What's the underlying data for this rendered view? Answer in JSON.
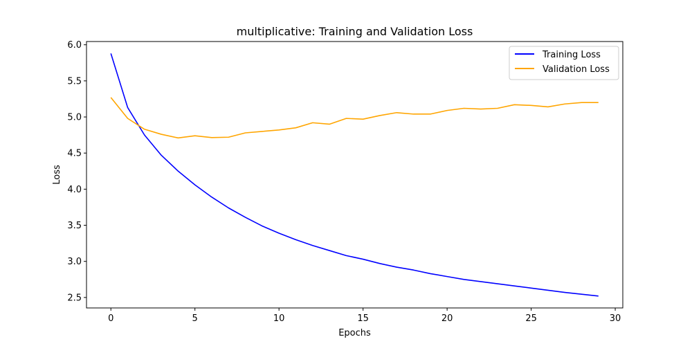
{
  "chart_data": {
    "type": "line",
    "title": "multiplicative: Training and Validation Loss",
    "xlabel": "Epochs",
    "ylabel": "Loss",
    "xlim": [
      -1.45,
      30.45
    ],
    "ylim": [
      2.355,
      6.045
    ],
    "xticks": [
      0,
      5,
      10,
      15,
      20,
      25,
      30
    ],
    "yticks": [
      2.5,
      3.0,
      3.5,
      4.0,
      4.5,
      5.0,
      5.5,
      6.0
    ],
    "xtick_labels": [
      "0",
      "5",
      "10",
      "15",
      "20",
      "25",
      "30"
    ],
    "ytick_labels": [
      "2.5",
      "3.0",
      "3.5",
      "4.0",
      "4.5",
      "5.0",
      "5.5",
      "6.0"
    ],
    "grid": false,
    "legend_position": "top-right",
    "x": [
      0,
      1,
      2,
      3,
      4,
      5,
      6,
      7,
      8,
      9,
      10,
      11,
      12,
      13,
      14,
      15,
      16,
      17,
      18,
      19,
      20,
      21,
      22,
      23,
      24,
      25,
      26,
      27,
      28,
      29
    ],
    "series": [
      {
        "name": "Training Loss",
        "color": "#0000ff",
        "values": [
          5.88,
          5.13,
          4.75,
          4.47,
          4.25,
          4.06,
          3.89,
          3.74,
          3.61,
          3.49,
          3.39,
          3.3,
          3.22,
          3.15,
          3.08,
          3.03,
          2.97,
          2.92,
          2.88,
          2.83,
          2.79,
          2.75,
          2.72,
          2.69,
          2.66,
          2.63,
          2.6,
          2.57,
          2.545,
          2.52
        ]
      },
      {
        "name": "Validation Loss",
        "color": "#ffa500",
        "values": [
          5.27,
          4.98,
          4.83,
          4.76,
          4.71,
          4.74,
          4.715,
          4.72,
          4.78,
          4.8,
          4.82,
          4.85,
          4.92,
          4.9,
          4.98,
          4.97,
          5.02,
          5.06,
          5.04,
          5.04,
          5.09,
          5.12,
          5.11,
          5.12,
          5.17,
          5.16,
          5.14,
          5.18,
          5.2,
          5.2
        ]
      }
    ]
  }
}
